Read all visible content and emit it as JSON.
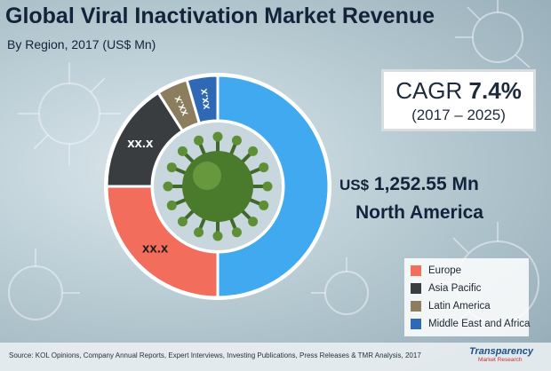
{
  "colors": {
    "north_america": "#41a9f0",
    "europe": "#f26d5b",
    "asia_pacific": "#3a3d40",
    "latin_america": "#8c7d5f",
    "middle_east_africa": "#2f68b4"
  },
  "title": "Global Viral Inactivation Market Revenue",
  "subtitle": "By Region, 2017 (US$ Mn)",
  "cagr": {
    "label": "CAGR",
    "value": "7.4%",
    "period": "(2017 – 2025)"
  },
  "highlight": {
    "currency": "US$",
    "value": "1,252.55",
    "unit": "Mn",
    "region": "North America"
  },
  "footer": {
    "source": "Source: KOL Opinions, Company Annual Reports, Expert Interviews, Investing Publications, Press Releases & TMR Analysis, 2017",
    "logo_main": "Transparency",
    "logo_sub": "Market Research"
  },
  "chart_data": {
    "type": "pie",
    "categories": [
      "North America",
      "Europe",
      "Asia Pacific",
      "Latin America",
      "Middle East and Africa"
    ],
    "values": [
      50.0,
      25.0,
      16.0,
      4.5,
      4.5
    ],
    "labels": [
      "",
      "xx.x",
      "xx.x",
      "xx.x",
      "xx.x"
    ],
    "colors": [
      "#41a9f0",
      "#f26d5b",
      "#3a3d40",
      "#8c7d5f",
      "#2f68b4"
    ],
    "legend": [
      "Europe",
      "Asia Pacific",
      "Latin America",
      "Middle East and Africa"
    ],
    "legend_colors": [
      "#f26d5b",
      "#3a3d40",
      "#8c7d5f",
      "#2f68b4"
    ],
    "legend_position": "bottom-right"
  }
}
